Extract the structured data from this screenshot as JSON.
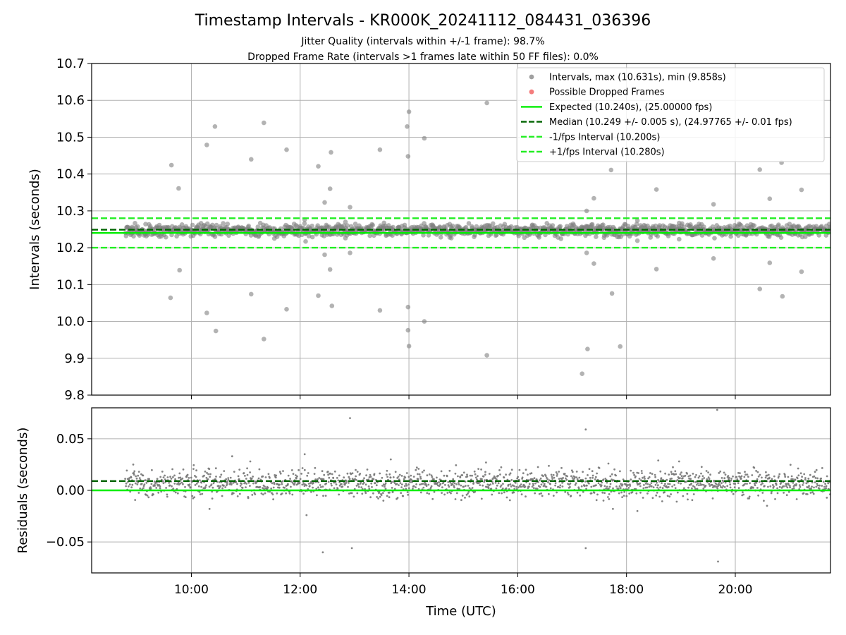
{
  "figure": {
    "title": "Timestamp Intervals - KR000K_20241112_084431_036396",
    "subtitle_1": "Jitter Quality (intervals within +/-1 frame): 98.7%",
    "subtitle_2": "Dropped Frame Rate (intervals >1 frames late within 50 FF files): 0.0%"
  },
  "chart_data": [
    {
      "type": "scatter",
      "panel": "top",
      "xlabel": "",
      "ylabel": "Intervals (seconds)",
      "xlim": [
        "08:10",
        "21:45"
      ],
      "ylim": [
        9.8,
        10.7
      ],
      "yticks": [
        "9.8",
        "9.9",
        "10.0",
        "10.1",
        "10.2",
        "10.3",
        "10.4",
        "10.5",
        "10.6",
        "10.7"
      ],
      "xticks": [
        "10:00",
        "12:00",
        "14:00",
        "16:00",
        "18:00",
        "20:00"
      ],
      "grid": true,
      "legend_position": "top-right",
      "band": {
        "x_start": "08:47",
        "x_end": "21:45",
        "center": 10.247,
        "halfwidth": 0.012
      },
      "series": [
        {
          "name": "Intervals, max (10.631s), min (9.858s)",
          "color": "#808080",
          "points": [
            [
              "09:38",
              10.424
            ],
            [
              "09:46",
              10.361
            ],
            [
              "09:47",
              10.139
            ],
            [
              "09:37",
              10.064
            ],
            [
              "10:17",
              10.479
            ],
            [
              "10:26",
              10.529
            ],
            [
              "10:17",
              10.023
            ],
            [
              "10:27",
              9.974
            ],
            [
              "11:06",
              10.44
            ],
            [
              "11:06",
              10.074
            ],
            [
              "11:20",
              10.539
            ],
            [
              "11:20",
              9.952
            ],
            [
              "11:45",
              10.466
            ],
            [
              "11:45",
              10.033
            ],
            [
              "12:20",
              10.421
            ],
            [
              "12:20",
              10.07
            ],
            [
              "12:27",
              10.323
            ],
            [
              "12:27",
              10.181
            ],
            [
              "12:33",
              10.36
            ],
            [
              "12:33",
              10.141
            ],
            [
              "12:34",
              10.459
            ],
            [
              "12:35",
              10.042
            ],
            [
              "12:55",
              10.31
            ],
            [
              "12:55",
              10.186
            ],
            [
              "13:28",
              10.466
            ],
            [
              "13:28",
              10.03
            ],
            [
              "13:58",
              10.529
            ],
            [
              "13:59",
              10.448
            ],
            [
              "14:00",
              10.569
            ],
            [
              "13:59",
              10.039
            ],
            [
              "13:59",
              9.976
            ],
            [
              "14:00",
              9.933
            ],
            [
              "14:17",
              10.497
            ],
            [
              "14:17",
              10.0
            ],
            [
              "15:26",
              10.593
            ],
            [
              "15:26",
              9.908
            ],
            [
              "17:11",
              9.858
            ],
            [
              "17:16",
              10.3
            ],
            [
              "17:16",
              10.186
            ],
            [
              "17:17",
              9.925
            ],
            [
              "17:24",
              10.334
            ],
            [
              "17:24",
              10.157
            ],
            [
              "17:43",
              10.411
            ],
            [
              "17:44",
              10.076
            ],
            [
              "17:53",
              9.932
            ],
            [
              "18:33",
              10.358
            ],
            [
              "18:33",
              10.142
            ],
            [
              "19:36",
              10.318
            ],
            [
              "19:36",
              10.171
            ],
            [
              "20:27",
              10.412
            ],
            [
              "20:27",
              10.088
            ],
            [
              "20:38",
              10.333
            ],
            [
              "20:38",
              10.159
            ],
            [
              "20:51",
              10.431
            ],
            [
              "20:52",
              10.068
            ],
            [
              "21:13",
              10.357
            ],
            [
              "21:13",
              10.135
            ],
            [
              "12:05",
              10.276
            ],
            [
              "12:06",
              10.217
            ],
            [
              "18:12",
              10.274
            ],
            [
              "18:12",
              10.219
            ],
            [
              "18:58",
              10.267
            ],
            [
              "18:58",
              10.223
            ],
            [
              "12:50",
              10.27
            ],
            [
              "12:50",
              10.226
            ],
            [
              "10:08",
              10.262
            ],
            [
              "14:45",
              10.264
            ],
            [
              "14:45",
              10.228
            ]
          ]
        },
        {
          "name": "Possible Dropped Frames",
          "color": "#f05050",
          "points": []
        },
        {
          "name": "Expected (10.240s), (25.00000 fps)",
          "color": "#00ee00",
          "style": "solid",
          "y": 10.24
        },
        {
          "name": "Median (10.249 +/- 0.005 s), (24.97765 +/- 0.01 fps)",
          "color": "#006400",
          "style": "dashed",
          "y": 10.249
        },
        {
          "name": "-1/fps Interval (10.200s)",
          "color": "#22ee22",
          "style": "dashed",
          "y": 10.2
        },
        {
          "name": "+1/fps Interval (10.280s)",
          "color": "#22ee22",
          "style": "dashed",
          "y": 10.28
        }
      ]
    },
    {
      "type": "scatter",
      "panel": "bottom",
      "xlabel": "Time (UTC)",
      "ylabel": "Residuals (seconds)",
      "xlim": [
        "08:10",
        "21:45"
      ],
      "ylim": [
        -0.08,
        0.08
      ],
      "yticks": [
        "−0.05",
        "0.00",
        "0.05"
      ],
      "ytick_values": [
        -0.05,
        0.0,
        0.05
      ],
      "xticks": [
        "10:00",
        "12:00",
        "14:00",
        "16:00",
        "18:00",
        "20:00"
      ],
      "grid": true,
      "band": {
        "x_start": "08:47",
        "x_end": "21:45",
        "center": 0.007,
        "halfwidth": 0.01
      },
      "series": [
        {
          "name": "Residuals",
          "color": "#777777",
          "points": [
            [
              "12:55",
              0.07
            ],
            [
              "19:40",
              0.078
            ],
            [
              "17:15",
              0.059
            ],
            [
              "12:05",
              0.035
            ],
            [
              "12:25",
              -0.06
            ],
            [
              "12:57",
              -0.056
            ],
            [
              "17:15",
              -0.056
            ],
            [
              "19:41",
              -0.069
            ],
            [
              "10:45",
              0.033
            ],
            [
              "11:05",
              0.028
            ],
            [
              "13:40",
              0.03
            ],
            [
              "15:25",
              0.027
            ],
            [
              "17:40",
              0.026
            ],
            [
              "18:35",
              0.029
            ],
            [
              "18:58",
              0.028
            ],
            [
              "12:07",
              -0.024
            ],
            [
              "18:12",
              -0.02
            ],
            [
              "10:20",
              -0.018
            ],
            [
              "17:45",
              -0.018
            ],
            [
              "20:35",
              -0.015
            ]
          ]
        },
        {
          "name": "Median offset",
          "color": "#006400",
          "style": "dashed",
          "y": 0.009
        },
        {
          "name": "Zero",
          "color": "#00ee00",
          "style": "solid",
          "y": 0.0
        }
      ]
    }
  ]
}
